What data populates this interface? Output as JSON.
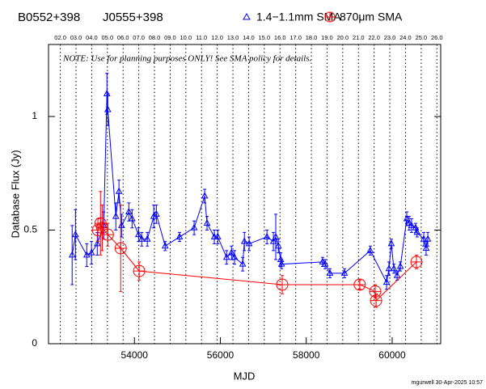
{
  "chart_data": {
    "type": "scatter",
    "title": "B0552+398",
    "subtitle": "J0555+398",
    "annotation": "NOTE: Use for planning purposes ONLY!  See SMA policy for details.",
    "footer": "mgurwell 30-Apr-2025 10:57",
    "xlabel": "MJD",
    "ylabel": "Database Flux (Jy)",
    "xlim": [
      52000,
      61130
    ],
    "ylim": [
      0,
      1.317
    ],
    "xticks": [
      54000,
      56000,
      58000,
      60000
    ],
    "yticks": [
      0,
      0.5,
      1
    ],
    "top_ticks": [
      {
        "value": 52275,
        "label": "02.0"
      },
      {
        "value": 52640,
        "label": "03.0"
      },
      {
        "value": 53005,
        "label": "04.0"
      },
      {
        "value": 53371,
        "label": "05.0"
      },
      {
        "value": 53736,
        "label": "06.0"
      },
      {
        "value": 54101,
        "label": "07.0"
      },
      {
        "value": 54466,
        "label": "08.0"
      },
      {
        "value": 54832,
        "label": "09.0"
      },
      {
        "value": 55197,
        "label": "10.0"
      },
      {
        "value": 55562,
        "label": "11.0"
      },
      {
        "value": 55927,
        "label": "12.0"
      },
      {
        "value": 56293,
        "label": "13.0"
      },
      {
        "value": 56658,
        "label": "14.0"
      },
      {
        "value": 57023,
        "label": "15.0"
      },
      {
        "value": 57388,
        "label": "16.0"
      },
      {
        "value": 57754,
        "label": "17.0"
      },
      {
        "value": 58119,
        "label": "18.0"
      },
      {
        "value": 58484,
        "label": "19.0"
      },
      {
        "value": 58849,
        "label": "20.0"
      },
      {
        "value": 59215,
        "label": "21.0"
      },
      {
        "value": 59580,
        "label": "22.0"
      },
      {
        "value": 59945,
        "label": "23.0"
      },
      {
        "value": 60310,
        "label": "24.0"
      },
      {
        "value": 60676,
        "label": "25.0"
      },
      {
        "value": 61041,
        "label": "26.0"
      }
    ],
    "series": [
      {
        "name": "1.4−1.1mm SMA",
        "color": "#0000ff",
        "marker": "triangle",
        "x": [
          52550,
          52627,
          52890,
          53000,
          53135,
          53285,
          53360,
          53380,
          53567,
          53640,
          53700,
          53870,
          53945,
          54095,
          54170,
          54300,
          54450,
          54510,
          54715,
          55050,
          55390,
          55635,
          55690,
          55860,
          55940,
          56145,
          56260,
          56330,
          56520,
          56560,
          56670,
          57085,
          57235,
          57290,
          57350,
          57405,
          57425,
          58380,
          58440,
          58550,
          58890,
          59490,
          59870,
          59925,
          59980,
          60040,
          60115,
          60190,
          60340,
          60395,
          60450,
          60545,
          60580,
          60735,
          60790,
          60830
        ],
        "values": [
          0.39,
          0.48,
          0.39,
          0.4,
          0.44,
          0.52,
          1.1,
          1.03,
          0.56,
          0.67,
          0.52,
          0.58,
          0.55,
          0.48,
          0.46,
          0.46,
          0.56,
          0.57,
          0.43,
          0.47,
          0.51,
          0.65,
          0.53,
          0.47,
          0.47,
          0.38,
          0.4,
          0.38,
          0.35,
          0.45,
          0.44,
          0.47,
          0.45,
          0.47,
          0.43,
          0.37,
          0.35,
          0.36,
          0.35,
          0.31,
          0.31,
          0.41,
          0.27,
          0.33,
          0.44,
          0.33,
          0.3,
          0.34,
          0.55,
          0.53,
          0.52,
          0.51,
          0.49,
          0.46,
          0.42,
          0.46
        ],
        "errors": [
          0.13,
          0.11,
          0.05,
          0.05,
          0.05,
          0.06,
          0.09,
          0.07,
          0.06,
          0.05,
          0.05,
          0.04,
          0.04,
          0.03,
          0.03,
          0.03,
          0.05,
          0.04,
          0.02,
          0.02,
          0.03,
          0.03,
          0.03,
          0.03,
          0.03,
          0.03,
          0.03,
          0.03,
          0.03,
          0.04,
          0.03,
          0.03,
          0.04,
          0.1,
          0.03,
          0.03,
          0.02,
          0.02,
          0.02,
          0.02,
          0.02,
          0.02,
          0.03,
          0.03,
          0.02,
          0.02,
          0.02,
          0.02,
          0.03,
          0.03,
          0.03,
          0.02,
          0.02,
          0.03,
          0.03,
          0.03
        ]
      },
      {
        "name": "870μm SMA",
        "color": "#ff0000",
        "marker": "circle-cross",
        "x": [
          53150,
          53210,
          53250,
          53380,
          53680,
          54110,
          57440,
          59245,
          59605,
          59625,
          60565
        ],
        "values": [
          0.5,
          0.53,
          0.51,
          0.48,
          0.42,
          0.32,
          0.26,
          0.26,
          0.23,
          0.19,
          0.36
        ],
        "errors": [
          0.05,
          0.14,
          0.1,
          0.05,
          0.19,
          0.04,
          0.04,
          0.02,
          0.03,
          0.03,
          0.03
        ]
      }
    ]
  }
}
